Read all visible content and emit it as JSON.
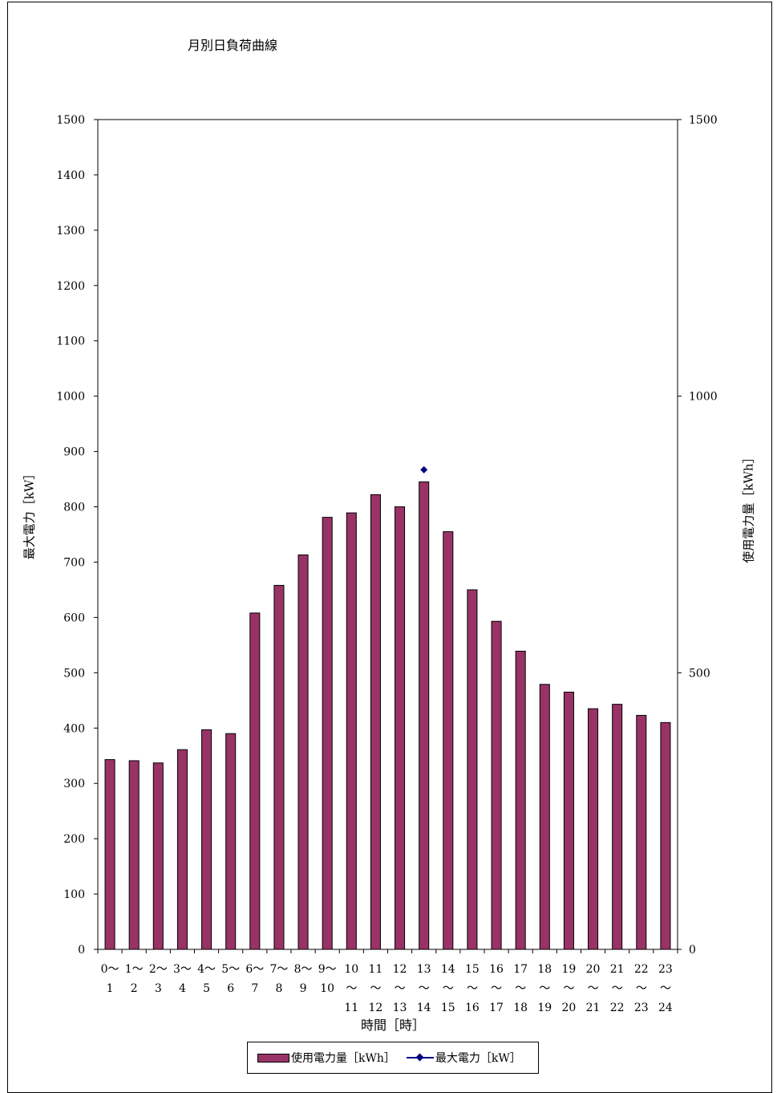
{
  "chart_data": {
    "type": "bar",
    "title": "月別日負荷曲線",
    "xlabel": "時間［時］",
    "ylabel_left": "最大電力［kW］",
    "ylabel_right": "使用電力量［kWh］",
    "ylim_left": [
      0,
      1500
    ],
    "yticks_left": [
      0,
      100,
      200,
      300,
      400,
      500,
      600,
      700,
      800,
      900,
      1000,
      1100,
      1200,
      1300,
      1400,
      1500
    ],
    "ylim_right": [
      0,
      1500
    ],
    "yticks_right": [
      0,
      500,
      1000,
      1500
    ],
    "categories": [
      [
        "0〜",
        "1"
      ],
      [
        "1〜",
        "2"
      ],
      [
        "2〜",
        "3"
      ],
      [
        "3〜",
        "4"
      ],
      [
        "4〜",
        "5"
      ],
      [
        "5〜",
        "6"
      ],
      [
        "6〜",
        "7"
      ],
      [
        "7〜",
        "8"
      ],
      [
        "8〜",
        "9"
      ],
      [
        "9〜",
        "10"
      ],
      [
        "10",
        "〜",
        "11"
      ],
      [
        "11",
        "〜",
        "12"
      ],
      [
        "12",
        "〜",
        "13"
      ],
      [
        "13",
        "〜",
        "14"
      ],
      [
        "14",
        "〜",
        "15"
      ],
      [
        "15",
        "〜",
        "16"
      ],
      [
        "16",
        "〜",
        "17"
      ],
      [
        "17",
        "〜",
        "18"
      ],
      [
        "18",
        "〜",
        "19"
      ],
      [
        "19",
        "〜",
        "20"
      ],
      [
        "20",
        "〜",
        "21"
      ],
      [
        "21",
        "〜",
        "22"
      ],
      [
        "22",
        "〜",
        "23"
      ],
      [
        "23",
        "〜",
        "24"
      ]
    ],
    "series": [
      {
        "name": "使用電力量［kWh］",
        "type": "bar",
        "axis": "right",
        "color": "#993366",
        "values": [
          343,
          341,
          337,
          361,
          397,
          390,
          608,
          658,
          713,
          781,
          789,
          822,
          800,
          845,
          755,
          650,
          593,
          539,
          479,
          465,
          435,
          443,
          423,
          410
        ]
      },
      {
        "name": "最大電力［kW］",
        "type": "line",
        "axis": "left",
        "color": "#000080",
        "values": [
          null,
          null,
          null,
          null,
          null,
          null,
          null,
          null,
          null,
          null,
          null,
          null,
          null,
          867,
          null,
          null,
          null,
          null,
          null,
          null,
          null,
          null,
          null,
          null
        ]
      }
    ],
    "grid": false,
    "legend": "bottom"
  }
}
